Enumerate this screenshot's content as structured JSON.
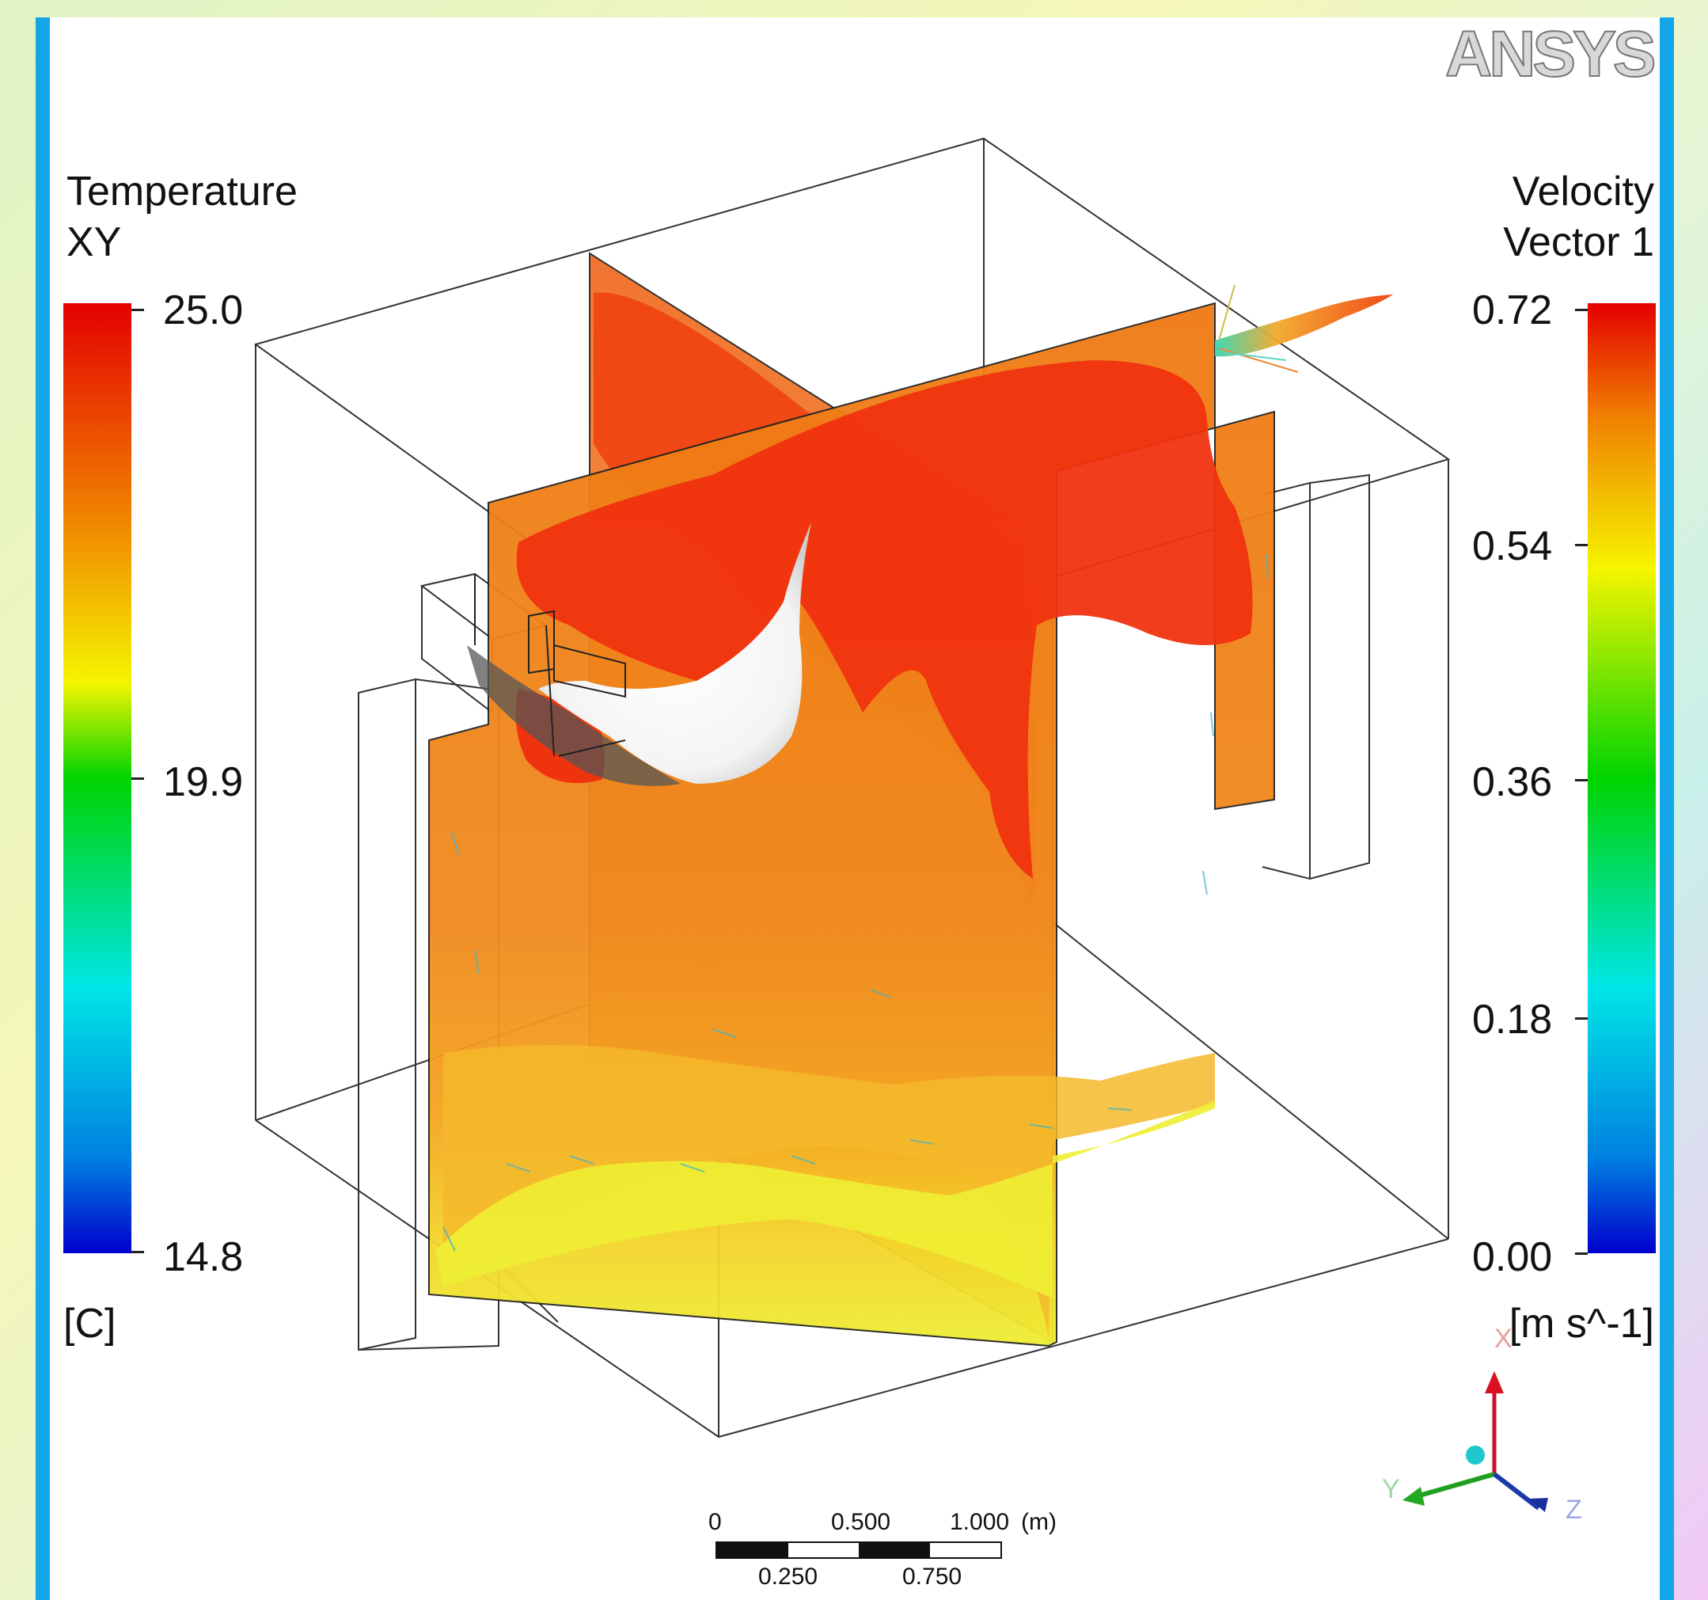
{
  "logo": {
    "text": "ANSYS"
  },
  "legend_left": {
    "title_line1": "Temperature",
    "title_line2": "XY",
    "max": "25.0",
    "mid": "19.9",
    "min": "14.8",
    "unit": "[C]",
    "colormap": "rainbow"
  },
  "legend_right": {
    "title_line1": "Velocity",
    "title_line2": "Vector 1",
    "ticks": [
      "0.72",
      "0.54",
      "0.36",
      "0.18",
      "0.00"
    ],
    "unit": "[m s^-1]",
    "colormap": "rainbow"
  },
  "scale_bar": {
    "top_labels": [
      "0",
      "0.500",
      "1.000"
    ],
    "unit": "(m)",
    "bottom_labels": [
      "0.250",
      "0.750"
    ]
  },
  "triad": {
    "x": "X",
    "y": "Y",
    "z": "Z"
  },
  "colors": {
    "frame": "#13a6e8",
    "contour_hot": "#f0330f",
    "contour_warm": "#f08a1e",
    "contour_cool": "#f4e43a"
  }
}
